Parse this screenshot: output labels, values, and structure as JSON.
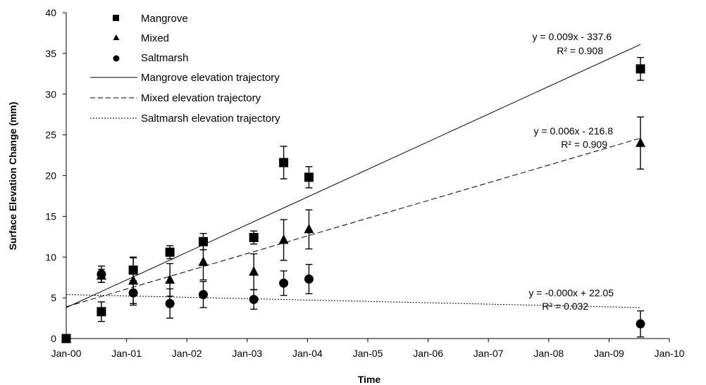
{
  "chart_data": {
    "type": "scatter",
    "xlabel": "Time",
    "ylabel": "Surface Elevation Change (mm)",
    "xlim": [
      "2000-01-01",
      "2010-01-01"
    ],
    "ylim": [
      0,
      40
    ],
    "x_ticks": [
      "Jan-00",
      "Jan-01",
      "Jan-02",
      "Jan-03",
      "Jan-04",
      "Jan-05",
      "Jan-06",
      "Jan-07",
      "Jan-08",
      "Jan-09",
      "Jan-10"
    ],
    "y_ticks": [
      "0",
      "5",
      "10",
      "15",
      "20",
      "25",
      "30",
      "35",
      "40"
    ],
    "grid": false,
    "legend_position": "top-left",
    "series": [
      {
        "name": "Mangrove",
        "marker": "square",
        "points": [
          {
            "x": "2000-01-01",
            "y": 0,
            "err": 0
          },
          {
            "x": "2000-08-01",
            "y": 3.3,
            "err": 1.2
          },
          {
            "x": "2001-02-10",
            "y": 8.4,
            "err": 1.6
          },
          {
            "x": "2001-09-20",
            "y": 10.6,
            "err": 0.8
          },
          {
            "x": "2002-04-10",
            "y": 11.9,
            "err": 1.0
          },
          {
            "x": "2003-02-10",
            "y": 12.4,
            "err": 0.8
          },
          {
            "x": "2003-08-10",
            "y": 21.6,
            "err": 2.0
          },
          {
            "x": "2004-01-10",
            "y": 19.8,
            "err": 1.3
          },
          {
            "x": "2009-07-10",
            "y": 33.1,
            "err": 1.4
          }
        ]
      },
      {
        "name": "Mixed",
        "marker": "triangle",
        "points": [
          {
            "x": "2000-01-01",
            "y": 0,
            "err": 0
          },
          {
            "x": "2000-08-01",
            "y": 7.7,
            "err": 0.8
          },
          {
            "x": "2001-02-10",
            "y": 7.1,
            "err": 2.8
          },
          {
            "x": "2001-09-20",
            "y": 7.2,
            "err": 2.0
          },
          {
            "x": "2002-04-10",
            "y": 9.4,
            "err": 2.2
          },
          {
            "x": "2003-02-10",
            "y": 8.2,
            "err": 2.2
          },
          {
            "x": "2003-08-10",
            "y": 12.1,
            "err": 2.5
          },
          {
            "x": "2004-01-10",
            "y": 13.4,
            "err": 2.4
          },
          {
            "x": "2009-07-10",
            "y": 24.0,
            "err": 3.2
          }
        ]
      },
      {
        "name": "Saltmarsh",
        "marker": "circle",
        "points": [
          {
            "x": "2000-01-01",
            "y": 0,
            "err": 0
          },
          {
            "x": "2000-08-01",
            "y": 7.9,
            "err": 1.0
          },
          {
            "x": "2001-02-10",
            "y": 5.6,
            "err": 1.5
          },
          {
            "x": "2001-09-20",
            "y": 4.3,
            "err": 1.8
          },
          {
            "x": "2002-04-10",
            "y": 5.4,
            "err": 1.6
          },
          {
            "x": "2003-02-10",
            "y": 4.8,
            "err": 1.2
          },
          {
            "x": "2003-08-10",
            "y": 6.8,
            "err": 1.5
          },
          {
            "x": "2004-01-10",
            "y": 7.3,
            "err": 1.8
          },
          {
            "x": "2009-07-10",
            "y": 1.8,
            "err": 1.6
          }
        ]
      }
    ],
    "trendlines": [
      {
        "name": "Mangrove elevation trajectory",
        "style": "solid",
        "start": {
          "x": "2000-01-01",
          "y": 3.8
        },
        "end": {
          "x": "2009-07-10",
          "y": 36.1
        },
        "equation": "y = 0.009x - 337.6",
        "r2": "R² = 0.908"
      },
      {
        "name": "Mixed elevation trajectory",
        "style": "dashed",
        "start": {
          "x": "2000-01-01",
          "y": 3.9
        },
        "end": {
          "x": "2009-07-10",
          "y": 24.6
        },
        "equation": "y = 0.006x - 216.8",
        "r2": "R² = 0.909"
      },
      {
        "name": "Saltmarsh elevation trajectory",
        "style": "dotted",
        "start": {
          "x": "2000-01-01",
          "y": 5.4
        },
        "end": {
          "x": "2009-07-10",
          "y": 3.8
        },
        "equation": "y = -0.000x + 22.05",
        "r2": "R² = 0.032"
      }
    ]
  }
}
